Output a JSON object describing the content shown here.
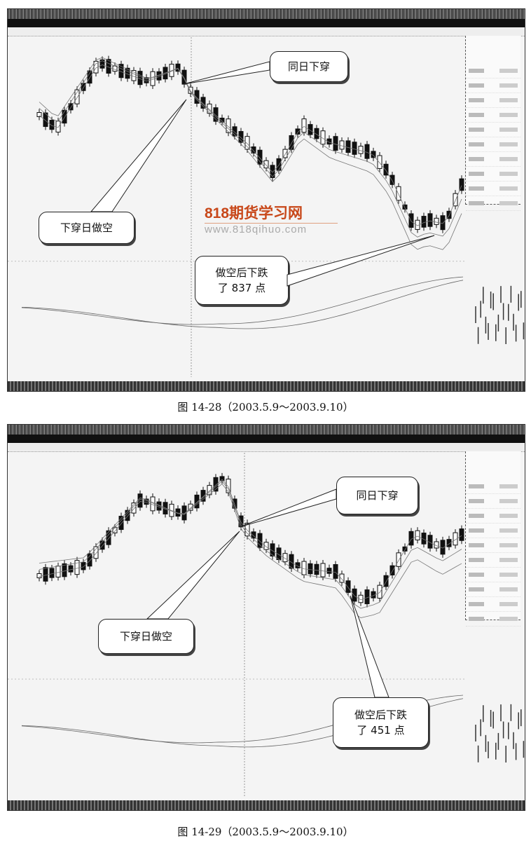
{
  "figures": [
    {
      "caption": "图 14-28（2003.5.9～2003.9.10）",
      "callouts": {
        "cross_same_day": "同日下穿",
        "short_on_cross": "下穿日做空",
        "drop_line1": "做空后下跌",
        "drop_line2": "了 837 点"
      }
    },
    {
      "caption": "图 14-29（2003.5.9～2003.9.10）",
      "callouts": {
        "cross_same_day": "同日下穿",
        "short_on_cross": "下穿日做空",
        "drop_line1": "做空后下跌",
        "drop_line2": "了 451 点"
      }
    }
  ],
  "watermark": {
    "brand": "818期货学习网",
    "url": "www.818qihuo.com",
    "brand_color": "#c8481a"
  },
  "chart_style": {
    "candle_color": "#111111",
    "line_color": "#777777"
  }
}
